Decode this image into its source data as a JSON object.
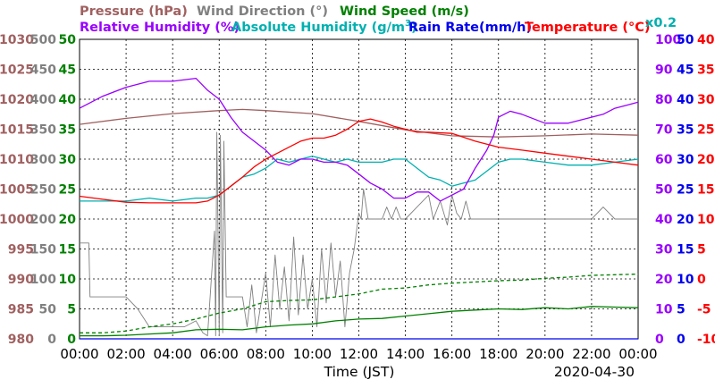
{
  "chart_data": {
    "type": "line",
    "date": "2020-04-30",
    "xlabel": "Time (JST)",
    "x_ticks": [
      "00:00",
      "02:00",
      "04:00",
      "06:00",
      "08:00",
      "10:00",
      "12:00",
      "14:00",
      "16:00",
      "18:00",
      "20:00",
      "22:00",
      "00:00"
    ],
    "xlim_hours": [
      0,
      24
    ],
    "grid": true,
    "scale_note": "x0.2",
    "axes": {
      "pressure": {
        "label": "Pressure (hPa)",
        "side": "left",
        "color": "#a06060",
        "range": [
          980,
          1030
        ],
        "ticks": [
          "1030",
          "1025",
          "1020",
          "1015",
          "1010",
          "1005",
          "1000",
          "995",
          "990",
          "985",
          "980"
        ]
      },
      "wind_dir": {
        "label": "Wind Direction (°)",
        "side": "left",
        "color": "#808080",
        "range": [
          0,
          500
        ],
        "ticks": [
          "500",
          "450",
          "400",
          "350",
          "300",
          "250",
          "200",
          "150",
          "100",
          "50",
          "0"
        ]
      },
      "wind_speed": {
        "label": "Wind Speed (m/s)",
        "side": "left",
        "color": "#008000",
        "range": [
          0,
          50
        ],
        "ticks": [
          "50",
          "45",
          "40",
          "35",
          "30",
          "25",
          "20",
          "15",
          "10",
          "5",
          "0"
        ]
      },
      "humidity": {
        "label": "Relative Humidity (%)",
        "side": "right",
        "color": "#9900ff",
        "range": [
          0,
          100
        ],
        "ticks": [
          "100",
          "90",
          "80",
          "70",
          "60",
          "50",
          "40",
          "30",
          "20",
          "10",
          "0"
        ]
      },
      "rain_rate": {
        "label": "Rain Rate(mm/h)",
        "side": "right",
        "color": "#0000ee",
        "range": [
          0,
          50
        ],
        "ticks": [
          "50",
          "45",
          "40",
          "35",
          "30",
          "25",
          "20",
          "15",
          "10",
          "5",
          "0"
        ]
      },
      "temperature": {
        "label": "Temperature (°C)",
        "side": "right",
        "color": "#ff0000",
        "range": [
          -10,
          40
        ],
        "ticks": [
          "40",
          "35",
          "30",
          "25",
          "20",
          "15",
          "10",
          "5",
          "0",
          "-5",
          "-10"
        ]
      },
      "abs_humidity": {
        "label_main": "Absolute Humidity (g/m",
        "label_sup": "3",
        "label_end": ")",
        "color": "#00b0b0",
        "scale": "x0.2"
      }
    },
    "series": [
      {
        "name": "Pressure",
        "axis": "pressure",
        "color": "#a06060",
        "x": [
          0,
          2,
          4,
          6,
          7,
          8,
          10,
          12,
          14,
          16,
          18,
          20,
          22,
          24
        ],
        "values": [
          1015.8,
          1016.8,
          1017.6,
          1018.1,
          1018.3,
          1018.1,
          1017.6,
          1016.3,
          1014.9,
          1013.9,
          1013.7,
          1013.9,
          1014.2,
          1014.0
        ]
      },
      {
        "name": "Relative Humidity",
        "axis": "humidity",
        "color": "#9900ff",
        "x": [
          0,
          0.5,
          1,
          2,
          3,
          4,
          5,
          5.5,
          6,
          6.5,
          7,
          7.5,
          8,
          8.5,
          9,
          9.5,
          10,
          10.5,
          11,
          11.5,
          12,
          12.5,
          13,
          13.5,
          14,
          14.5,
          15,
          15.5,
          16,
          16.5,
          17,
          17.5,
          17.8,
          18,
          18.5,
          19,
          20,
          21,
          22,
          22.5,
          23,
          23.5,
          24
        ],
        "values": [
          77,
          79,
          81,
          84,
          86,
          86,
          87,
          83,
          80,
          74,
          69,
          66,
          63,
          59,
          58,
          60,
          60,
          59,
          59,
          58,
          55,
          52,
          50,
          47,
          47,
          49,
          49,
          46,
          48,
          50,
          57,
          63,
          68,
          74,
          76,
          75,
          72,
          72,
          74,
          75,
          77,
          78,
          79
        ]
      },
      {
        "name": "Absolute Humidity",
        "axis": "humidity",
        "color": "#00b0b0",
        "x": [
          0,
          1,
          2,
          3,
          4,
          5,
          5.5,
          6,
          6.5,
          7,
          7.5,
          8,
          8.5,
          9,
          9.5,
          10,
          10.5,
          11,
          11.5,
          12,
          12.5,
          13,
          13.5,
          14,
          14.5,
          15,
          15.5,
          16,
          16.5,
          17,
          17.5,
          18,
          18.5,
          19,
          20,
          21,
          22,
          23,
          24
        ],
        "values": [
          46,
          46,
          46,
          47,
          46,
          47,
          47,
          48,
          51,
          54,
          55,
          57,
          60,
          59,
          60,
          61,
          60,
          59,
          60,
          59,
          59,
          59,
          60,
          60,
          57,
          54,
          53,
          51,
          52,
          53,
          56,
          59,
          60,
          60,
          59,
          58,
          58,
          59,
          60
        ]
      },
      {
        "name": "Temperature",
        "axis": "temperature",
        "color": "#ff0000",
        "x": [
          0,
          1,
          2,
          3,
          4,
          5,
          5.5,
          6,
          6.5,
          7,
          7.5,
          8,
          8.5,
          9,
          9.5,
          10,
          10.5,
          11,
          11.5,
          12,
          12.5,
          13,
          13.5,
          14,
          14.5,
          15,
          16,
          17,
          18,
          19,
          20,
          21,
          22,
          23,
          24
        ],
        "values": [
          13.8,
          13.3,
          12.8,
          12.7,
          12.7,
          12.7,
          13,
          14,
          15.5,
          17,
          18.7,
          20,
          21,
          22,
          23,
          23.5,
          23.5,
          24,
          25,
          26.3,
          26.7,
          26.2,
          25.5,
          25,
          24.5,
          24.5,
          24.3,
          23,
          22,
          21.5,
          21,
          20.5,
          20,
          19.5,
          19
        ]
      },
      {
        "name": "Wind Direction",
        "axis": "wind_dir",
        "color": "#808080",
        "x": [
          0,
          0.4,
          0.45,
          1,
          1.5,
          2,
          2.5,
          3,
          3.5,
          4,
          4.5,
          5,
          5.3,
          5.5,
          5.8,
          5.85,
          5.9,
          6.0,
          6.05,
          6.15,
          6.2,
          6.3,
          6.5,
          7,
          7.2,
          7.4,
          7.6,
          7.8,
          8,
          8.2,
          8.4,
          8.6,
          8.8,
          9,
          9.2,
          9.4,
          9.6,
          9.8,
          10,
          10.2,
          10.4,
          10.6,
          10.8,
          11,
          11.2,
          11.4,
          11.6,
          11.8,
          12,
          12.1,
          12.2,
          12.4,
          12.6,
          13,
          13.2,
          13.4,
          13.6,
          13.8,
          14,
          14.5,
          15,
          15.2,
          15.5,
          15.8,
          16,
          16.2,
          16.4,
          16.6,
          16.8,
          17,
          17.2,
          17.5,
          18,
          18.5,
          19,
          19.5,
          20,
          20.5,
          21,
          21.5,
          22,
          22.5,
          23,
          23.5,
          24
        ],
        "values": [
          160,
          160,
          70,
          70,
          70,
          70,
          50,
          20,
          20,
          20,
          20,
          30,
          10,
          5,
          180,
          5,
          345,
          5,
          340,
          10,
          330,
          70,
          70,
          70,
          20,
          90,
          10,
          60,
          110,
          20,
          140,
          50,
          120,
          30,
          170,
          40,
          140,
          50,
          100,
          20,
          150,
          60,
          160,
          70,
          130,
          20,
          110,
          150,
          210,
          200,
          250,
          200,
          200,
          200,
          220,
          200,
          220,
          200,
          200,
          220,
          240,
          200,
          230,
          190,
          240,
          210,
          200,
          230,
          200,
          200,
          200,
          200,
          200,
          200,
          200,
          200,
          200,
          200,
          200,
          200,
          200,
          220,
          200,
          200,
          200
        ]
      },
      {
        "name": "Wind Speed (avg)",
        "axis": "wind_speed",
        "color": "#008000",
        "x": [
          0,
          1,
          2,
          3,
          4,
          5,
          6,
          7,
          8,
          9,
          10,
          11,
          12,
          13,
          14,
          15,
          16,
          17,
          18,
          19,
          20,
          21,
          22,
          23,
          24
        ],
        "values": [
          0.5,
          0.5,
          0.6,
          0.8,
          1,
          1.5,
          1.6,
          1.5,
          2,
          2.3,
          2.5,
          3,
          3.3,
          3.4,
          3.8,
          4.2,
          4.6,
          4.8,
          5,
          4.9,
          5.2,
          5,
          5.4,
          5.3,
          5.2
        ]
      },
      {
        "name": "Wind Speed (gust)",
        "axis": "wind_speed",
        "color": "#008000",
        "dashed": true,
        "x": [
          0,
          1,
          2,
          3,
          4,
          5,
          6,
          7,
          8,
          9,
          10,
          11,
          12,
          13,
          14,
          15,
          16,
          17,
          18,
          19,
          20,
          21,
          22,
          23,
          24
        ],
        "values": [
          1,
          1,
          1.3,
          2,
          2.5,
          3.3,
          4.3,
          5,
          6.2,
          6.4,
          6.5,
          7,
          7.5,
          8.3,
          8.5,
          9,
          9.3,
          9.5,
          9.7,
          9.8,
          10.1,
          10.3,
          10.6,
          10.7,
          10.8
        ]
      },
      {
        "name": "Rain Rate",
        "axis": "rain_rate",
        "color": "#0000ee",
        "x": [
          0,
          24
        ],
        "values": [
          0,
          0
        ]
      }
    ]
  }
}
